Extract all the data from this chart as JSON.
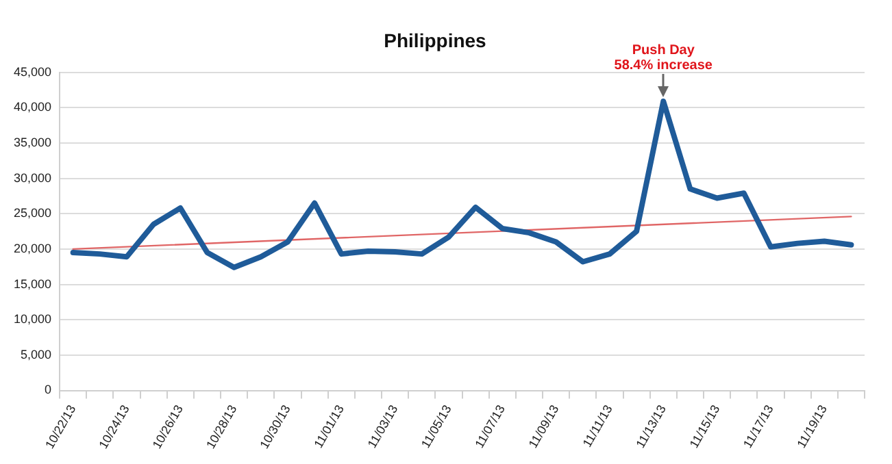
{
  "chart_data": {
    "type": "line",
    "title": "Philippines",
    "categories": [
      "10/22/13",
      null,
      "10/24/13",
      null,
      "10/26/13",
      null,
      "10/28/13",
      null,
      "10/30/13",
      null,
      "11/01/13",
      null,
      "11/03/13",
      null,
      "11/05/13",
      null,
      "11/07/13",
      null,
      "11/09/13",
      null,
      "11/11/13",
      null,
      "11/13/13",
      null,
      "11/15/13",
      null,
      "11/17/13",
      null,
      "11/19/13",
      null
    ],
    "series": [
      {
        "color": "#1f5b99",
        "values": [
          19500,
          19300,
          18900,
          23500,
          25800,
          19500,
          17400,
          18900,
          21000,
          26500,
          19300,
          19700,
          19600,
          19300,
          21700,
          25900,
          22900,
          22300,
          21000,
          18200,
          19300,
          22500,
          40900,
          28500,
          27200,
          27900,
          20300,
          20800,
          21100,
          20600
        ]
      },
      {
        "type": "line",
        "color": "#e06666",
        "values": [
          20000,
          null,
          null,
          null,
          null,
          null,
          null,
          null,
          null,
          null,
          null,
          null,
          null,
          null,
          null,
          null,
          null,
          null,
          null,
          null,
          null,
          null,
          null,
          null,
          null,
          null,
          null,
          null,
          null,
          24600
        ]
      }
    ],
    "ylim": [
      0,
      45000
    ],
    "yticks": [
      0,
      {
        "value": 5000,
        "label": "5,000"
      },
      {
        "value": 10000,
        "label": "10,000"
      },
      {
        "value": 15000,
        "label": "15,000"
      },
      {
        "value": 20000,
        "label": "20,000"
      },
      {
        "value": 25000,
        "label": "25,000"
      },
      {
        "value": 30000,
        "label": "30,000"
      },
      {
        "value": 35000,
        "label": "35,000"
      },
      {
        "value": 40000,
        "label": "40,000"
      },
      {
        "value": 45000,
        "label": "45,000"
      }
    ],
    "grid": "y",
    "legend": false,
    "marker": "none",
    "line_style": "solid",
    "annotations": [
      "Push Day",
      {
        "text": "58.4% increase",
        "x": "11/13/13",
        "y": 40900
      }
    ]
  }
}
